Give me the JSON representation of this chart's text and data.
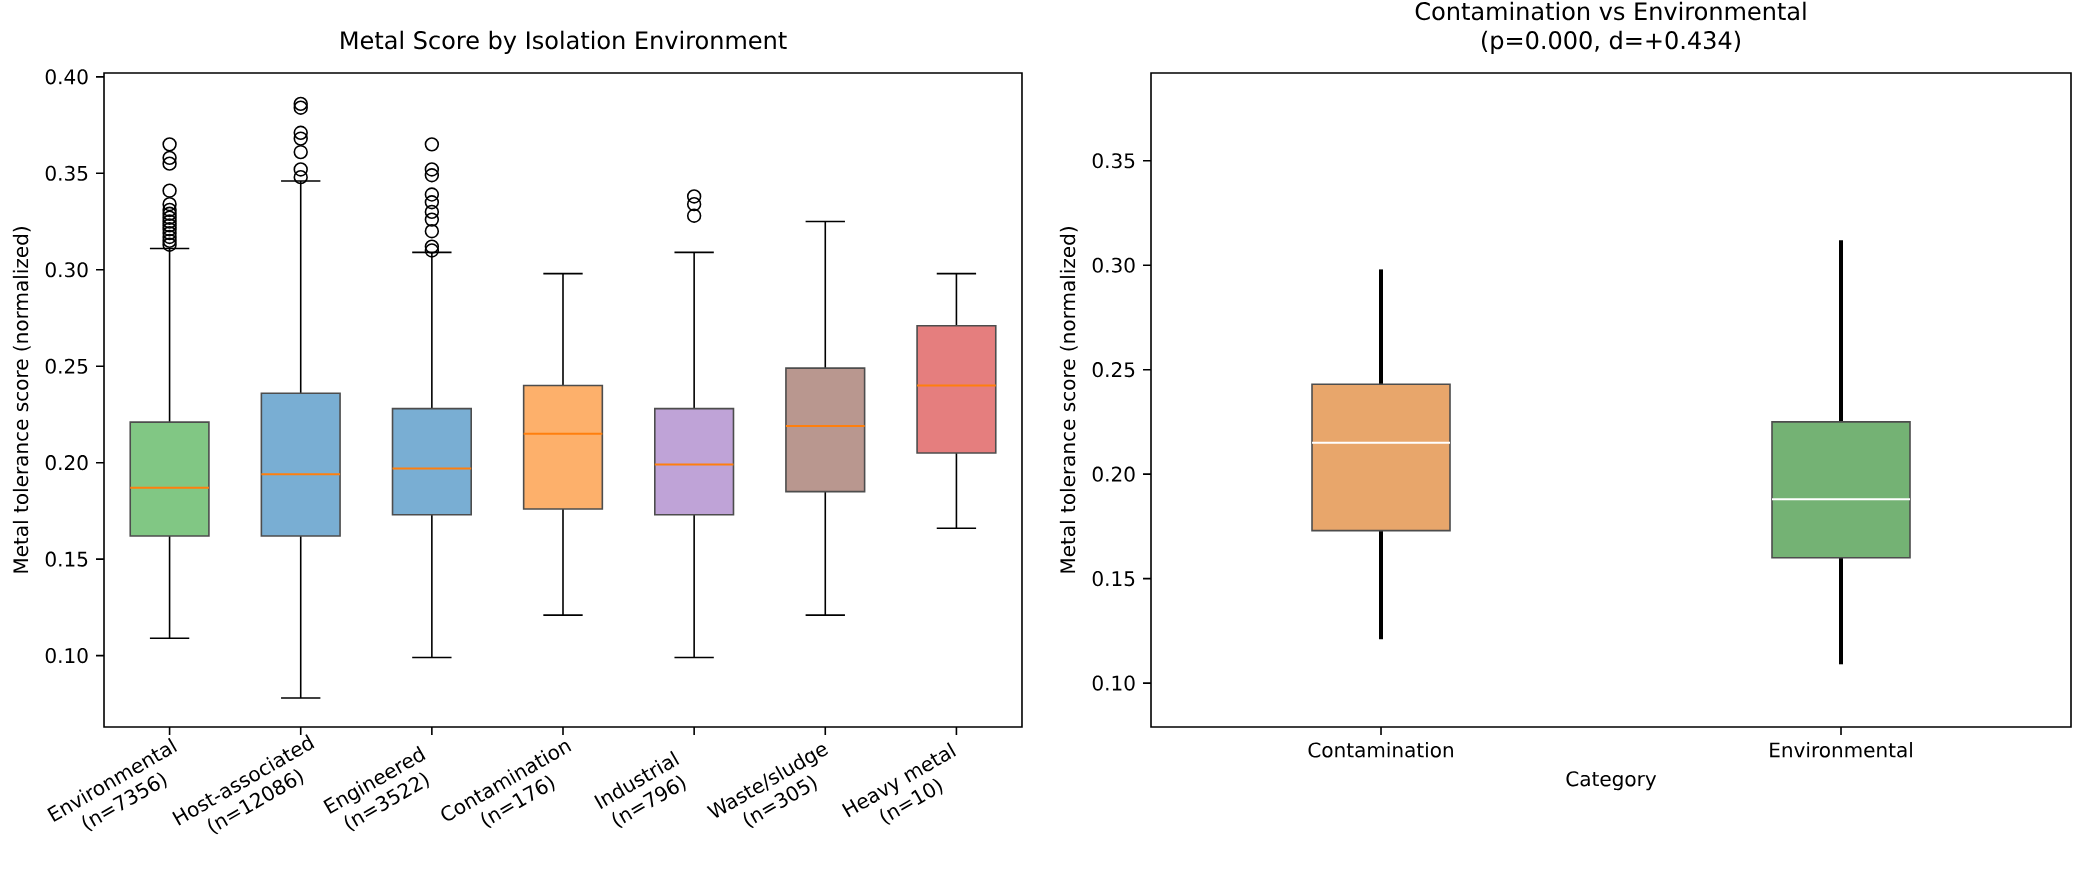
{
  "chart_data": [
    {
      "type": "box",
      "title": "Metal Score by Isolation Environment",
      "ylabel": "Metal tolerance score (normalized)",
      "categories": [
        "Environmental (n=7356)",
        "Host-associated (n=12086)",
        "Engineered (n=3522)",
        "Contamination (n=176)",
        "Industrial (n=796)",
        "Waste/sludge (n=305)",
        "Heavy metal (n=10)"
      ],
      "colors": [
        "#81c784",
        "#79aed3",
        "#79aed3",
        "#fdb06b",
        "#bfa3d7",
        "#b9978f",
        "#e57e7e"
      ],
      "boxes": [
        {
          "low": 0.109,
          "q1": 0.162,
          "median": 0.187,
          "q3": 0.221,
          "high": 0.311,
          "outliers": [
            0.365,
            0.358,
            0.355,
            0.341,
            0.334,
            0.331,
            0.329,
            0.327,
            0.325,
            0.323,
            0.321,
            0.319,
            0.317,
            0.315,
            0.313
          ]
        },
        {
          "low": 0.078,
          "q1": 0.162,
          "median": 0.194,
          "q3": 0.236,
          "high": 0.346,
          "outliers": [
            0.386,
            0.384,
            0.371,
            0.368,
            0.361,
            0.352,
            0.348
          ]
        },
        {
          "low": 0.099,
          "q1": 0.173,
          "median": 0.197,
          "q3": 0.228,
          "high": 0.309,
          "outliers": [
            0.365,
            0.352,
            0.349,
            0.339,
            0.335,
            0.33,
            0.326,
            0.32,
            0.312,
            0.31
          ]
        },
        {
          "low": 0.121,
          "q1": 0.176,
          "median": 0.215,
          "q3": 0.24,
          "high": 0.298
        },
        {
          "low": 0.099,
          "q1": 0.173,
          "median": 0.199,
          "q3": 0.228,
          "high": 0.309,
          "outliers": [
            0.338,
            0.334,
            0.328
          ]
        },
        {
          "low": 0.121,
          "q1": 0.185,
          "median": 0.219,
          "q3": 0.249,
          "high": 0.325
        },
        {
          "low": 0.166,
          "q1": 0.205,
          "median": 0.24,
          "q3": 0.271,
          "high": 0.298
        }
      ],
      "ylim": [
        0.063,
        0.402
      ],
      "yticks": [
        {
          "value": 0.1,
          "label": "0.10"
        },
        {
          "value": 0.15,
          "label": "0.15"
        },
        {
          "value": 0.2,
          "label": "0.20"
        },
        {
          "value": 0.25,
          "label": "0.25"
        },
        {
          "value": 0.3,
          "label": "0.30"
        },
        {
          "value": 0.35,
          "label": "0.35"
        },
        {
          "value": 0.4,
          "label": "0.40"
        }
      ]
    },
    {
      "type": "box",
      "title": "Contamination vs Environmental",
      "subtitle": "(p=0.000, d=+0.434)",
      "xlabel": "Category",
      "ylabel": "Metal tolerance score (normalized)",
      "categories": [
        "Contamination",
        "Environmental"
      ],
      "colors": [
        "#e8a66b",
        "#74b274"
      ],
      "boxes": [
        {
          "low": 0.121,
          "q1": 0.173,
          "median": 0.215,
          "q3": 0.243,
          "high": 0.298
        },
        {
          "low": 0.109,
          "q1": 0.16,
          "median": 0.188,
          "q3": 0.225,
          "high": 0.312
        }
      ],
      "ylim": [
        0.079,
        0.392
      ],
      "yticks": [
        {
          "value": 0.1,
          "label": "0.10"
        },
        {
          "value": 0.15,
          "label": "0.15"
        },
        {
          "value": 0.2,
          "label": "0.20"
        },
        {
          "value": 0.25,
          "label": "0.25"
        },
        {
          "value": 0.3,
          "label": "0.30"
        },
        {
          "value": 0.35,
          "label": "0.35"
        }
      ]
    }
  ]
}
